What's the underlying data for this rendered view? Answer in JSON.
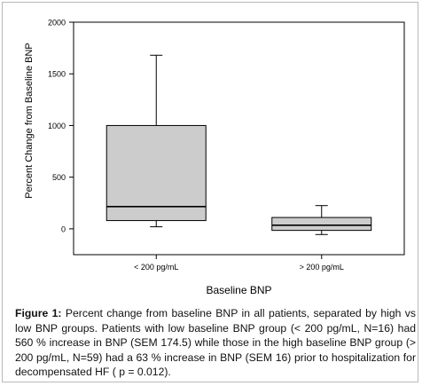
{
  "chart_data": {
    "type": "box",
    "title": "",
    "xlabel": "Baseline BNP",
    "ylabel": "Percent Change from Baseline BNP",
    "ylim": [
      -250,
      2000
    ],
    "yticks": [
      0,
      500,
      1000,
      1500,
      2000
    ],
    "ytick_labels": [
      "0",
      "500",
      "1000",
      "1500",
      "2000"
    ],
    "categories": [
      "< 200 pg/mL",
      "> 200 pg/mL"
    ],
    "boxes": [
      {
        "category": "< 200 pg/mL",
        "whisker_low": 20,
        "q1": 80,
        "median": 215,
        "q3": 1000,
        "whisker_high": 1680
      },
      {
        "category": "> 200 pg/mL",
        "whisker_low": -55,
        "q1": -15,
        "median": 35,
        "q3": 110,
        "whisker_high": 225
      }
    ],
    "colors": {
      "box_fill": "#cccccc",
      "line": "#000000"
    },
    "grid": false,
    "legend": "none"
  },
  "caption": {
    "label": "Figure 1:",
    "text": " Percent change from baseline BNP in all patients, separated by high vs low BNP groups. Patients with low baseline BNP group (< 200 pg/mL, N=16) had 560 % increase in BNP (SEM 174.5) while those in the high baseline BNP group (> 200 pg/mL, N=59) had a 63 % increase in BNP (SEM 16) prior to hospitalization for decompensated HF ( p = 0.012)."
  }
}
